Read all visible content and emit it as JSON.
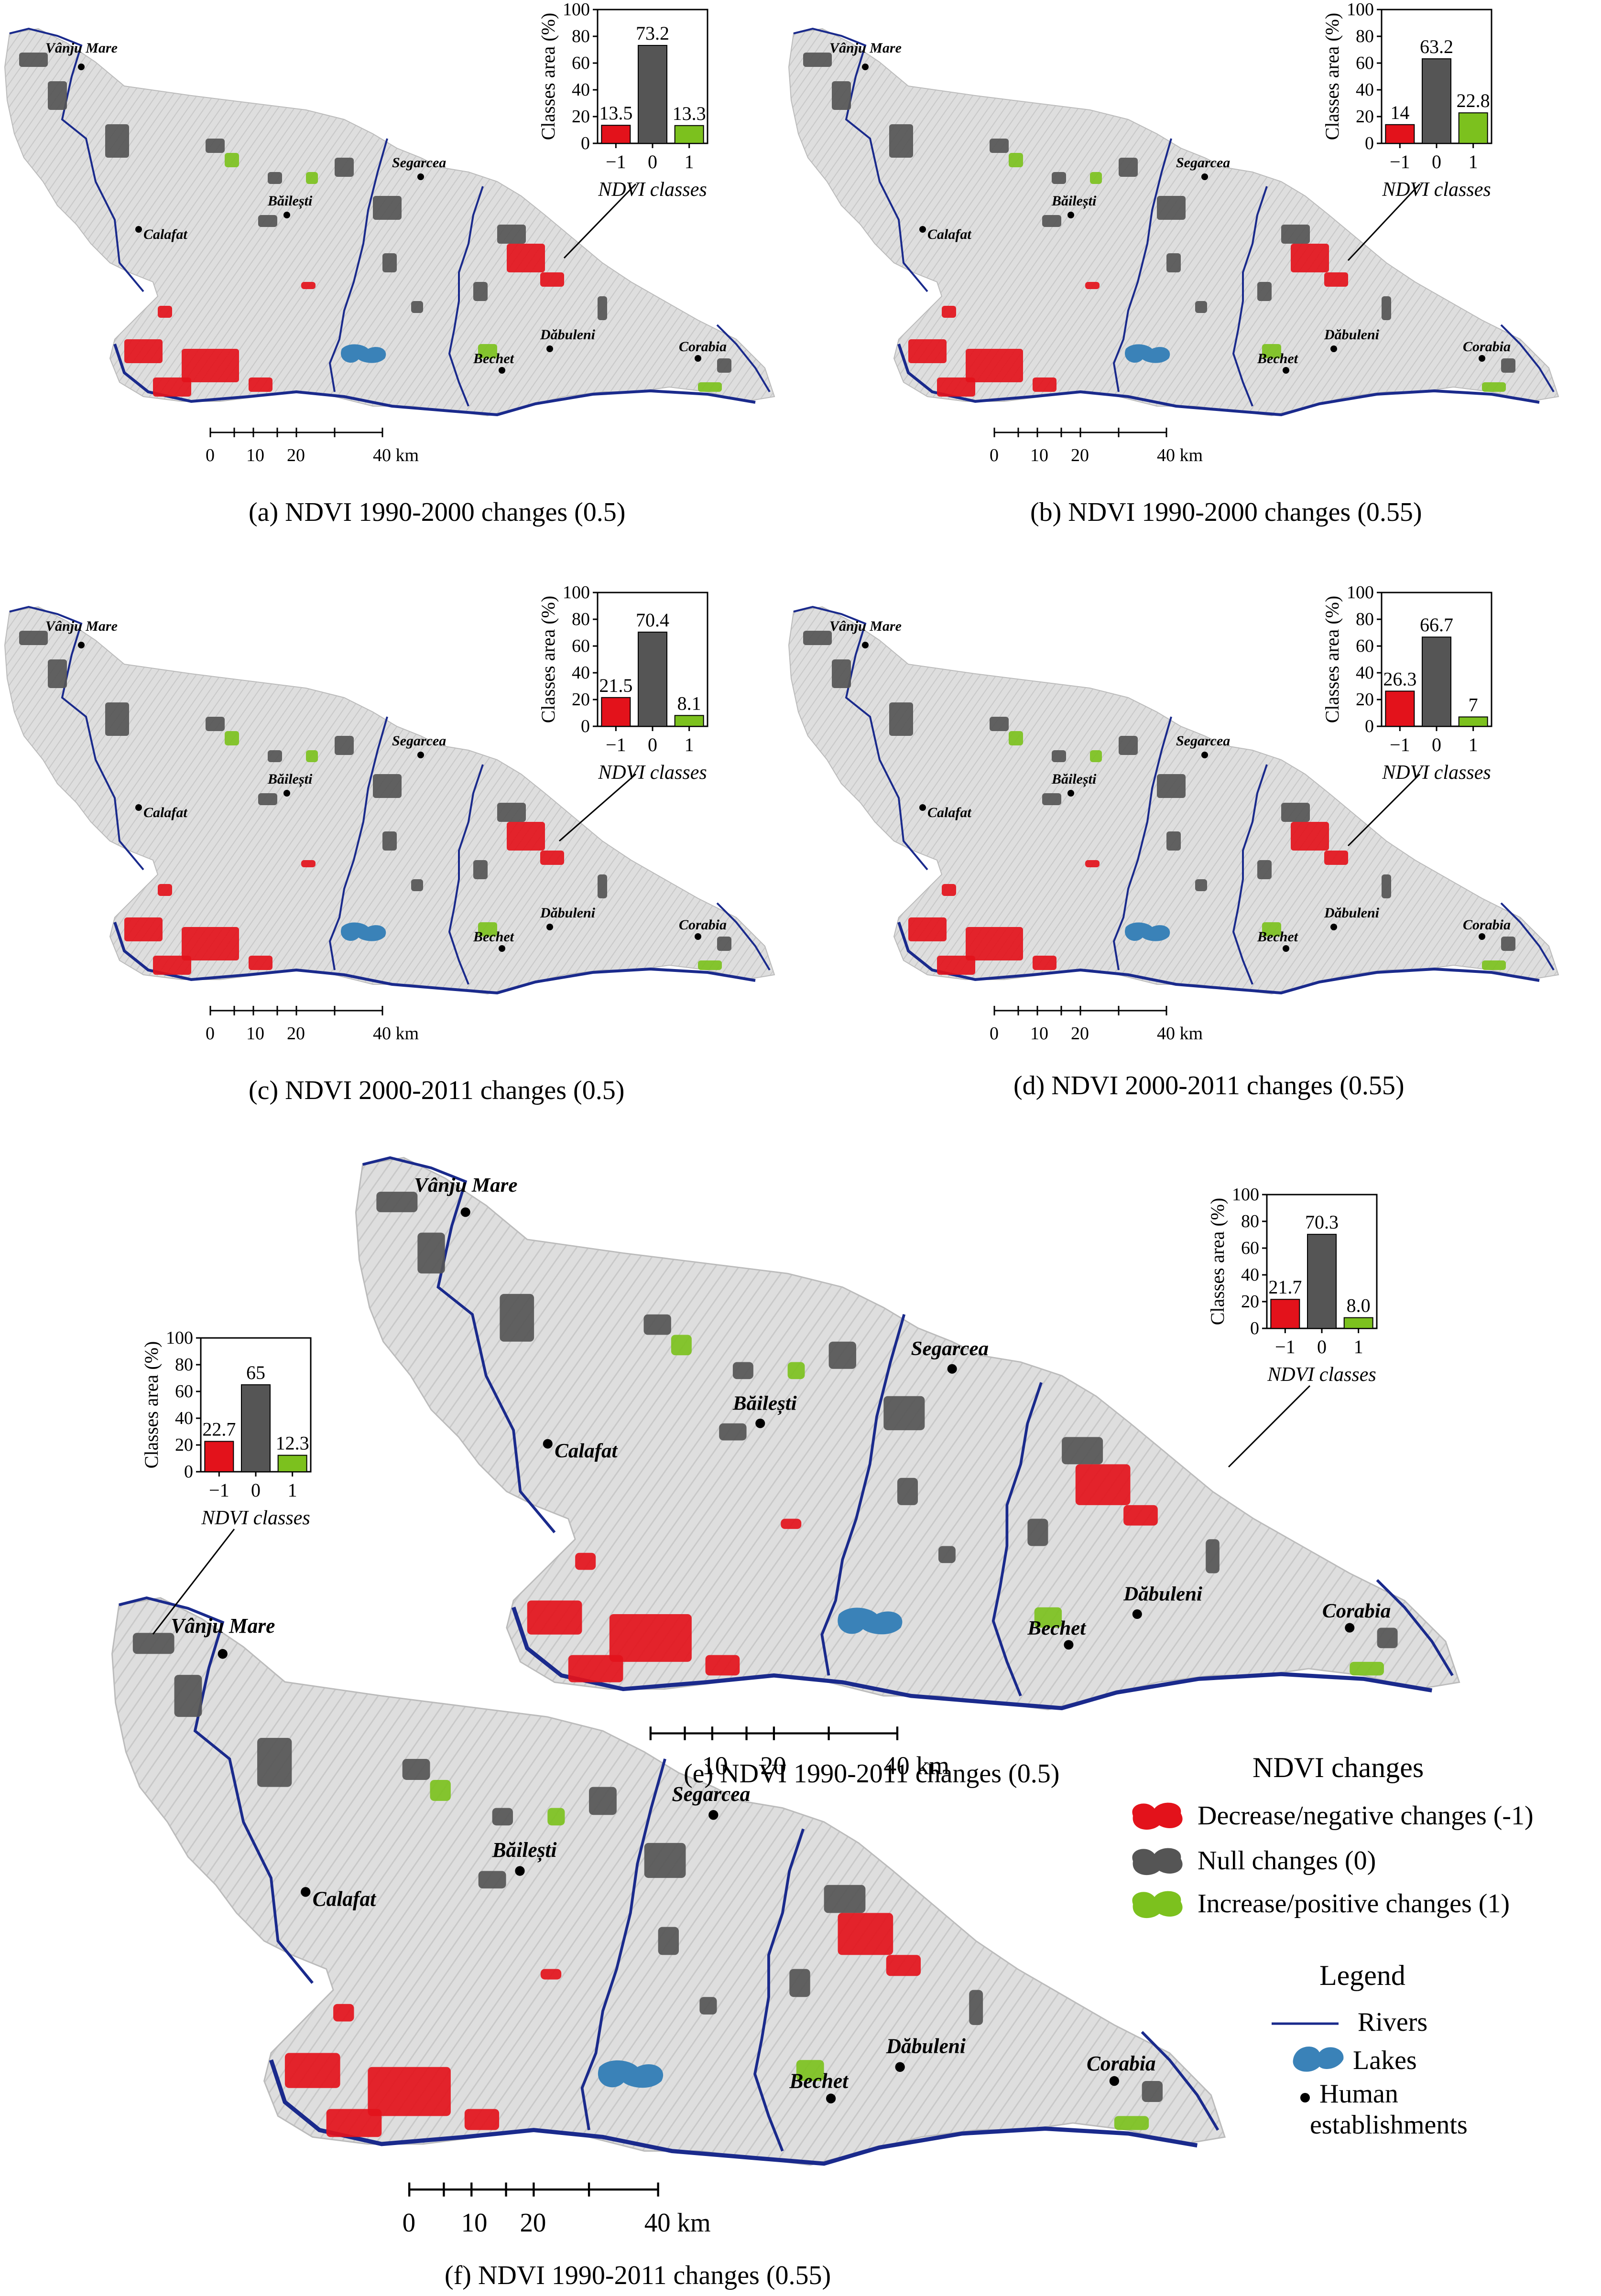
{
  "colors": {
    "decrease": "#e3121b",
    "null": "#555555",
    "increase": "#7cc11e",
    "river": "#1a2a8c",
    "lake": "#3a82b8",
    "terrain": "#dcdcdc"
  },
  "place_names": {
    "vanju_mare": "Vânju Mare",
    "segarcea": "Segarcea",
    "bailesti": "Băilești",
    "calafat": "Calafat",
    "dabuleni": "Dăbuleni",
    "bechet": "Bechet",
    "corabia": "Corabia"
  },
  "scale_bar": {
    "ticks": [
      "0",
      "10",
      "20",
      "40 km"
    ]
  },
  "panels": [
    {
      "id": "a",
      "caption": "(a) NDVI 1990-2000 changes (0.5)"
    },
    {
      "id": "b",
      "caption": "(b) NDVI 1990-2000 changes (0.55)"
    },
    {
      "id": "c",
      "caption": "(c) NDVI 2000-2011 changes (0.5)"
    },
    {
      "id": "d",
      "caption": "(d) NDVI 2000-2011 changes (0.55)"
    },
    {
      "id": "e",
      "caption": "(e) NDVI 1990-2011 changes (0.5)"
    },
    {
      "id": "f",
      "caption": "(f) NDVI 1990-2011 changes (0.55)"
    }
  ],
  "chart_common": {
    "ylabel": "Classes area (%)",
    "xlabel": "NDVI classes",
    "yticks": [
      "0",
      "20",
      "40",
      "60",
      "80",
      "100"
    ]
  },
  "chart_data": [
    {
      "type": "bar",
      "panel": "a",
      "categories": [
        "−1",
        "0",
        "1"
      ],
      "values": [
        13.5,
        73.2,
        13.3
      ],
      "labels": [
        "13.5",
        "73.2",
        "13.3"
      ],
      "xlabel": "NDVI classes",
      "ylabel": "Classes area (%)",
      "ylim": [
        0,
        100
      ]
    },
    {
      "type": "bar",
      "panel": "b",
      "categories": [
        "−1",
        "0",
        "1"
      ],
      "values": [
        14,
        63.2,
        22.8
      ],
      "labels": [
        "14",
        "63.2",
        "22.8"
      ],
      "xlabel": "NDVI classes",
      "ylabel": "Classes area (%)",
      "ylim": [
        0,
        100
      ]
    },
    {
      "type": "bar",
      "panel": "c",
      "categories": [
        "−1",
        "0",
        "1"
      ],
      "values": [
        21.5,
        70.4,
        8.1
      ],
      "labels": [
        "21.5",
        "70.4",
        "8.1"
      ],
      "xlabel": "NDVI classes",
      "ylabel": "Classes area (%)",
      "ylim": [
        0,
        100
      ]
    },
    {
      "type": "bar",
      "panel": "d",
      "categories": [
        "−1",
        "0",
        "1"
      ],
      "values": [
        26.3,
        66.7,
        7
      ],
      "labels": [
        "26.3",
        "66.7",
        "7"
      ],
      "xlabel": "NDVI classes",
      "ylabel": "Classes area (%)",
      "ylim": [
        0,
        100
      ]
    },
    {
      "type": "bar",
      "panel": "e",
      "categories": [
        "−1",
        "0",
        "1"
      ],
      "values": [
        21.7,
        70.3,
        8.0
      ],
      "labels": [
        "21.7",
        "70.3",
        "8.0"
      ],
      "xlabel": "NDVI classes",
      "ylabel": "Classes area (%)",
      "ylim": [
        0,
        100
      ]
    },
    {
      "type": "bar",
      "panel": "f",
      "categories": [
        "−1",
        "0",
        "1"
      ],
      "values": [
        22.7,
        65,
        12.3
      ],
      "labels": [
        "22.7",
        "65",
        "12.3"
      ],
      "xlabel": "NDVI classes",
      "ylabel": "Classes area (%)",
      "ylim": [
        0,
        100
      ]
    }
  ],
  "legend": {
    "ndvi_title": "NDVI changes",
    "decrease": "Decrease/negative changes (-1)",
    "null": "Null changes (0)",
    "increase": "Increase/positive changes (1)",
    "legend_title": "Legend",
    "rivers": "Rivers",
    "lakes": "Lakes",
    "human_line1": "Human",
    "human_line2": "establishments"
  }
}
